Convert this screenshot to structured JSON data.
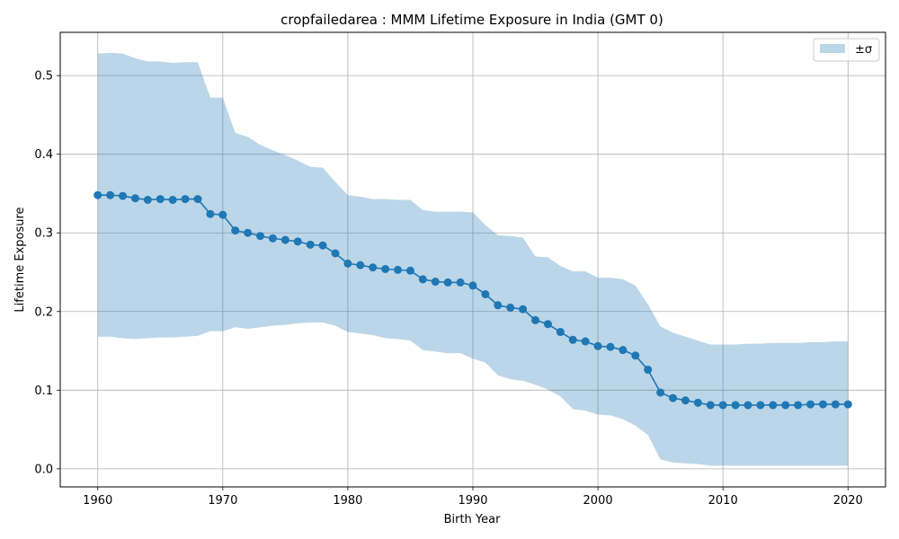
{
  "chart_data": {
    "type": "line",
    "title": "cropfailedarea : MMM Lifetime Exposure in India (GMT 0)",
    "xlabel": "Birth Year",
    "ylabel": "Lifetime Exposure",
    "xlim": [
      1957,
      2023
    ],
    "ylim": [
      -0.023,
      0.555
    ],
    "xticks": [
      1960,
      1970,
      1980,
      1990,
      2000,
      2010,
      2020
    ],
    "yticks": [
      0.0,
      0.1,
      0.2,
      0.3,
      0.4,
      0.5
    ],
    "grid": true,
    "legend": {
      "position": "top-right",
      "entries": [
        "±σ"
      ]
    },
    "colors": {
      "line": "#1f77b4",
      "band": "#1f77b4",
      "band_opacity": 0.3,
      "grid": "#b0b0b0"
    },
    "series": [
      {
        "kind": "line-markers",
        "x": [
          1960,
          1961,
          1962,
          1963,
          1964,
          1965,
          1966,
          1967,
          1968,
          1969,
          1970,
          1971,
          1972,
          1973,
          1974,
          1975,
          1976,
          1977,
          1978,
          1979,
          1980,
          1981,
          1982,
          1983,
          1984,
          1985,
          1986,
          1987,
          1988,
          1989,
          1990,
          1991,
          1992,
          1993,
          1994,
          1995,
          1996,
          1997,
          1998,
          1999,
          2000,
          2001,
          2002,
          2003,
          2004,
          2005,
          2006,
          2007,
          2008,
          2009,
          2010,
          2011,
          2012,
          2013,
          2014,
          2015,
          2016,
          2017,
          2018,
          2019,
          2020
        ],
        "values": [
          0.348,
          0.348,
          0.347,
          0.344,
          0.342,
          0.343,
          0.342,
          0.343,
          0.343,
          0.324,
          0.323,
          0.303,
          0.3,
          0.296,
          0.293,
          0.291,
          0.289,
          0.285,
          0.284,
          0.274,
          0.261,
          0.259,
          0.256,
          0.254,
          0.253,
          0.252,
          0.241,
          0.238,
          0.237,
          0.237,
          0.233,
          0.222,
          0.208,
          0.205,
          0.203,
          0.189,
          0.184,
          0.174,
          0.164,
          0.162,
          0.156,
          0.155,
          0.151,
          0.144,
          0.126,
          0.097,
          0.09,
          0.087,
          0.084,
          0.081,
          0.081,
          0.081,
          0.081,
          0.081,
          0.081,
          0.081,
          0.081,
          0.082,
          0.082,
          0.082,
          0.082
        ]
      },
      {
        "name": "±σ",
        "kind": "band",
        "x": [
          1960,
          1961,
          1962,
          1963,
          1964,
          1965,
          1966,
          1967,
          1968,
          1969,
          1970,
          1971,
          1972,
          1973,
          1974,
          1975,
          1976,
          1977,
          1978,
          1979,
          1980,
          1981,
          1982,
          1983,
          1984,
          1985,
          1986,
          1987,
          1988,
          1989,
          1990,
          1991,
          1992,
          1993,
          1994,
          1995,
          1996,
          1997,
          1998,
          1999,
          2000,
          2001,
          2002,
          2003,
          2004,
          2005,
          2006,
          2007,
          2008,
          2009,
          2010,
          2011,
          2012,
          2013,
          2014,
          2015,
          2016,
          2017,
          2018,
          2019,
          2020
        ],
        "upper": [
          0.528,
          0.529,
          0.528,
          0.522,
          0.518,
          0.518,
          0.516,
          0.517,
          0.517,
          0.472,
          0.472,
          0.427,
          0.422,
          0.412,
          0.405,
          0.399,
          0.392,
          0.384,
          0.383,
          0.365,
          0.348,
          0.346,
          0.343,
          0.343,
          0.342,
          0.342,
          0.329,
          0.327,
          0.327,
          0.327,
          0.326,
          0.31,
          0.297,
          0.296,
          0.294,
          0.27,
          0.269,
          0.258,
          0.251,
          0.251,
          0.243,
          0.243,
          0.241,
          0.233,
          0.209,
          0.181,
          0.173,
          0.168,
          0.163,
          0.158,
          0.158,
          0.158,
          0.159,
          0.159,
          0.16,
          0.16,
          0.16,
          0.161,
          0.161,
          0.162,
          0.162
        ],
        "lower": [
          0.168,
          0.168,
          0.166,
          0.165,
          0.166,
          0.167,
          0.167,
          0.168,
          0.169,
          0.175,
          0.175,
          0.18,
          0.178,
          0.18,
          0.182,
          0.183,
          0.185,
          0.186,
          0.186,
          0.182,
          0.174,
          0.172,
          0.17,
          0.166,
          0.165,
          0.163,
          0.151,
          0.149,
          0.147,
          0.147,
          0.14,
          0.135,
          0.119,
          0.114,
          0.112,
          0.107,
          0.101,
          0.092,
          0.076,
          0.074,
          0.069,
          0.068,
          0.063,
          0.055,
          0.043,
          0.012,
          0.008,
          0.007,
          0.006,
          0.004,
          0.004,
          0.004,
          0.004,
          0.004,
          0.004,
          0.004,
          0.004,
          0.004,
          0.004,
          0.004,
          0.004
        ]
      }
    ]
  }
}
